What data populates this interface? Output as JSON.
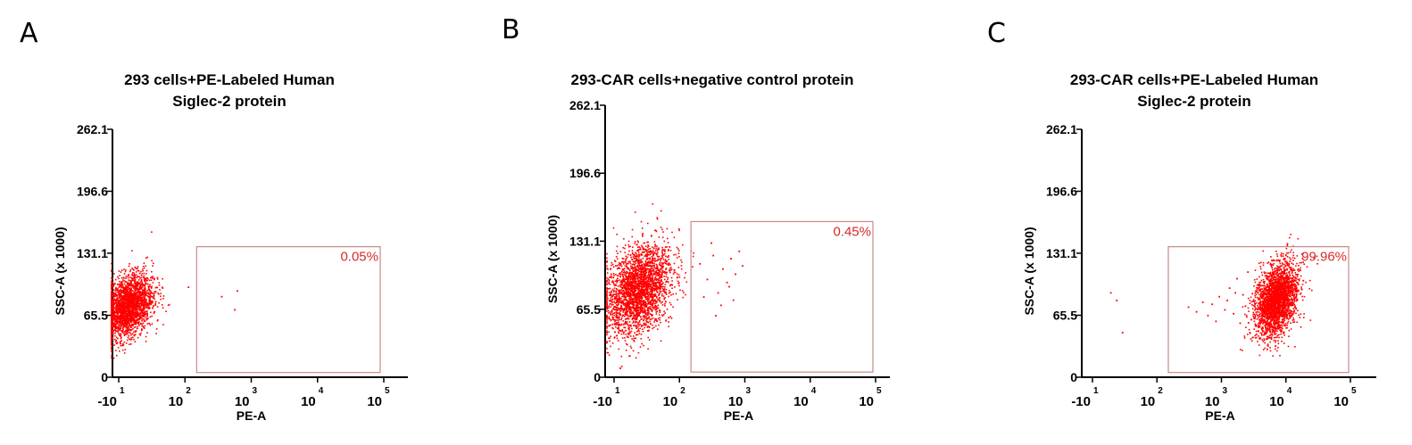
{
  "chart_data": [
    {
      "type": "scatter",
      "panel_letter": "A",
      "title_lines": [
        "293 cells+PE-Labeled Human",
        "Siglec-2 protein"
      ],
      "xlabel": "PE-A",
      "ylabel": "SSC-A (x 1000)",
      "x_scale": "biexponential",
      "xticks": [
        {
          "base": "-10",
          "exp": "1",
          "value": -10
        },
        {
          "base": "10",
          "exp": "2",
          "value": 100
        },
        {
          "base": "10",
          "exp": "3",
          "value": 1000
        },
        {
          "base": "10",
          "exp": "4",
          "value": 10000
        },
        {
          "base": "10",
          "exp": "5",
          "value": 100000
        }
      ],
      "yticks": [
        0,
        65.5,
        131.1,
        196.6,
        262.1
      ],
      "ylim": [
        0,
        262.1
      ],
      "gate": {
        "x_range": [
          150,
          100000
        ],
        "y_range": [
          5,
          138
        ],
        "label": "0.05%"
      },
      "population": {
        "center_x": 3,
        "center_y": 75,
        "spread_x": 0.35,
        "spread_y": 16,
        "count": 2400
      },
      "outliers": [
        {
          "x": 350,
          "y": 86
        },
        {
          "x": 600,
          "y": 92
        },
        {
          "x": 550,
          "y": 72
        },
        {
          "x": 110,
          "y": 96
        }
      ]
    },
    {
      "type": "scatter",
      "panel_letter": "B",
      "title_lines": [
        "293-CAR cells+negative control protein"
      ],
      "xlabel": "PE-A",
      "ylabel": "SSC-A (x 1000)",
      "x_scale": "biexponential",
      "xticks": [
        {
          "base": "-10",
          "exp": "1",
          "value": -10
        },
        {
          "base": "10",
          "exp": "2",
          "value": 100
        },
        {
          "base": "10",
          "exp": "3",
          "value": 1000
        },
        {
          "base": "10",
          "exp": "4",
          "value": 10000
        },
        {
          "base": "10",
          "exp": "5",
          "value": 100000
        }
      ],
      "yticks": [
        0,
        65.5,
        131.1,
        196.6,
        262.1
      ],
      "ylim": [
        0,
        262.1
      ],
      "gate": {
        "x_range": [
          150,
          100000
        ],
        "y_range": [
          5,
          150
        ],
        "label": "0.45%"
      },
      "population": {
        "center_x": 30,
        "center_y": 85,
        "spread_x": 0.45,
        "spread_y": 20,
        "count": 2600
      },
      "outliers": [
        {
          "x": 200,
          "y": 110
        },
        {
          "x": 260,
          "y": 95
        },
        {
          "x": 320,
          "y": 118
        },
        {
          "x": 380,
          "y": 82
        },
        {
          "x": 450,
          "y": 105
        },
        {
          "x": 520,
          "y": 92
        },
        {
          "x": 600,
          "y": 115
        },
        {
          "x": 650,
          "y": 75
        },
        {
          "x": 700,
          "y": 100
        },
        {
          "x": 800,
          "y": 122
        },
        {
          "x": 420,
          "y": 70
        },
        {
          "x": 300,
          "y": 130
        },
        {
          "x": 230,
          "y": 78
        },
        {
          "x": 560,
          "y": 88
        },
        {
          "x": 900,
          "y": 108
        },
        {
          "x": 350,
          "y": 60
        }
      ]
    },
    {
      "type": "scatter",
      "panel_letter": "C",
      "title_lines": [
        "293-CAR cells+PE-Labeled Human",
        "Siglec-2 protein"
      ],
      "xlabel": "PE-A",
      "ylabel": "SSC-A (x 1000)",
      "x_scale": "biexponential",
      "xticks": [
        {
          "base": "-10",
          "exp": "1",
          "value": -10
        },
        {
          "base": "10",
          "exp": "2",
          "value": 100
        },
        {
          "base": "10",
          "exp": "3",
          "value": 1000
        },
        {
          "base": "10",
          "exp": "4",
          "value": 10000
        },
        {
          "base": "10",
          "exp": "5",
          "value": 100000
        }
      ],
      "yticks": [
        0,
        65.5,
        131.1,
        196.6,
        262.1
      ],
      "ylim": [
        0,
        262.1
      ],
      "gate": {
        "x_range": [
          150,
          100000
        ],
        "y_range": [
          5,
          138
        ],
        "label": "99.96%"
      },
      "population": {
        "center_x": 7000,
        "center_y": 82,
        "spread_x": 0.3,
        "spread_y": 18,
        "count": 2600
      },
      "outliers": [
        {
          "x": 20,
          "y": 90
        },
        {
          "x": 30,
          "y": 82
        },
        {
          "x": 40,
          "y": 48
        },
        {
          "x": 300,
          "y": 75
        },
        {
          "x": 400,
          "y": 70
        },
        {
          "x": 500,
          "y": 80
        },
        {
          "x": 600,
          "y": 66
        },
        {
          "x": 700,
          "y": 78
        },
        {
          "x": 800,
          "y": 60
        },
        {
          "x": 900,
          "y": 86
        },
        {
          "x": 1100,
          "y": 72
        },
        {
          "x": 1300,
          "y": 95
        },
        {
          "x": 1500,
          "y": 68
        },
        {
          "x": 1700,
          "y": 105
        },
        {
          "x": 1900,
          "y": 58
        },
        {
          "x": 2100,
          "y": 88
        },
        {
          "x": 2300,
          "y": 76
        },
        {
          "x": 2500,
          "y": 112
        },
        {
          "x": 1200,
          "y": 82
        },
        {
          "x": 1600,
          "y": 90
        }
      ]
    }
  ],
  "colors": {
    "points": "#ff0000",
    "gate_border": "#c98a8a",
    "gate_label": "#d62a2a",
    "axis": "#000000"
  }
}
